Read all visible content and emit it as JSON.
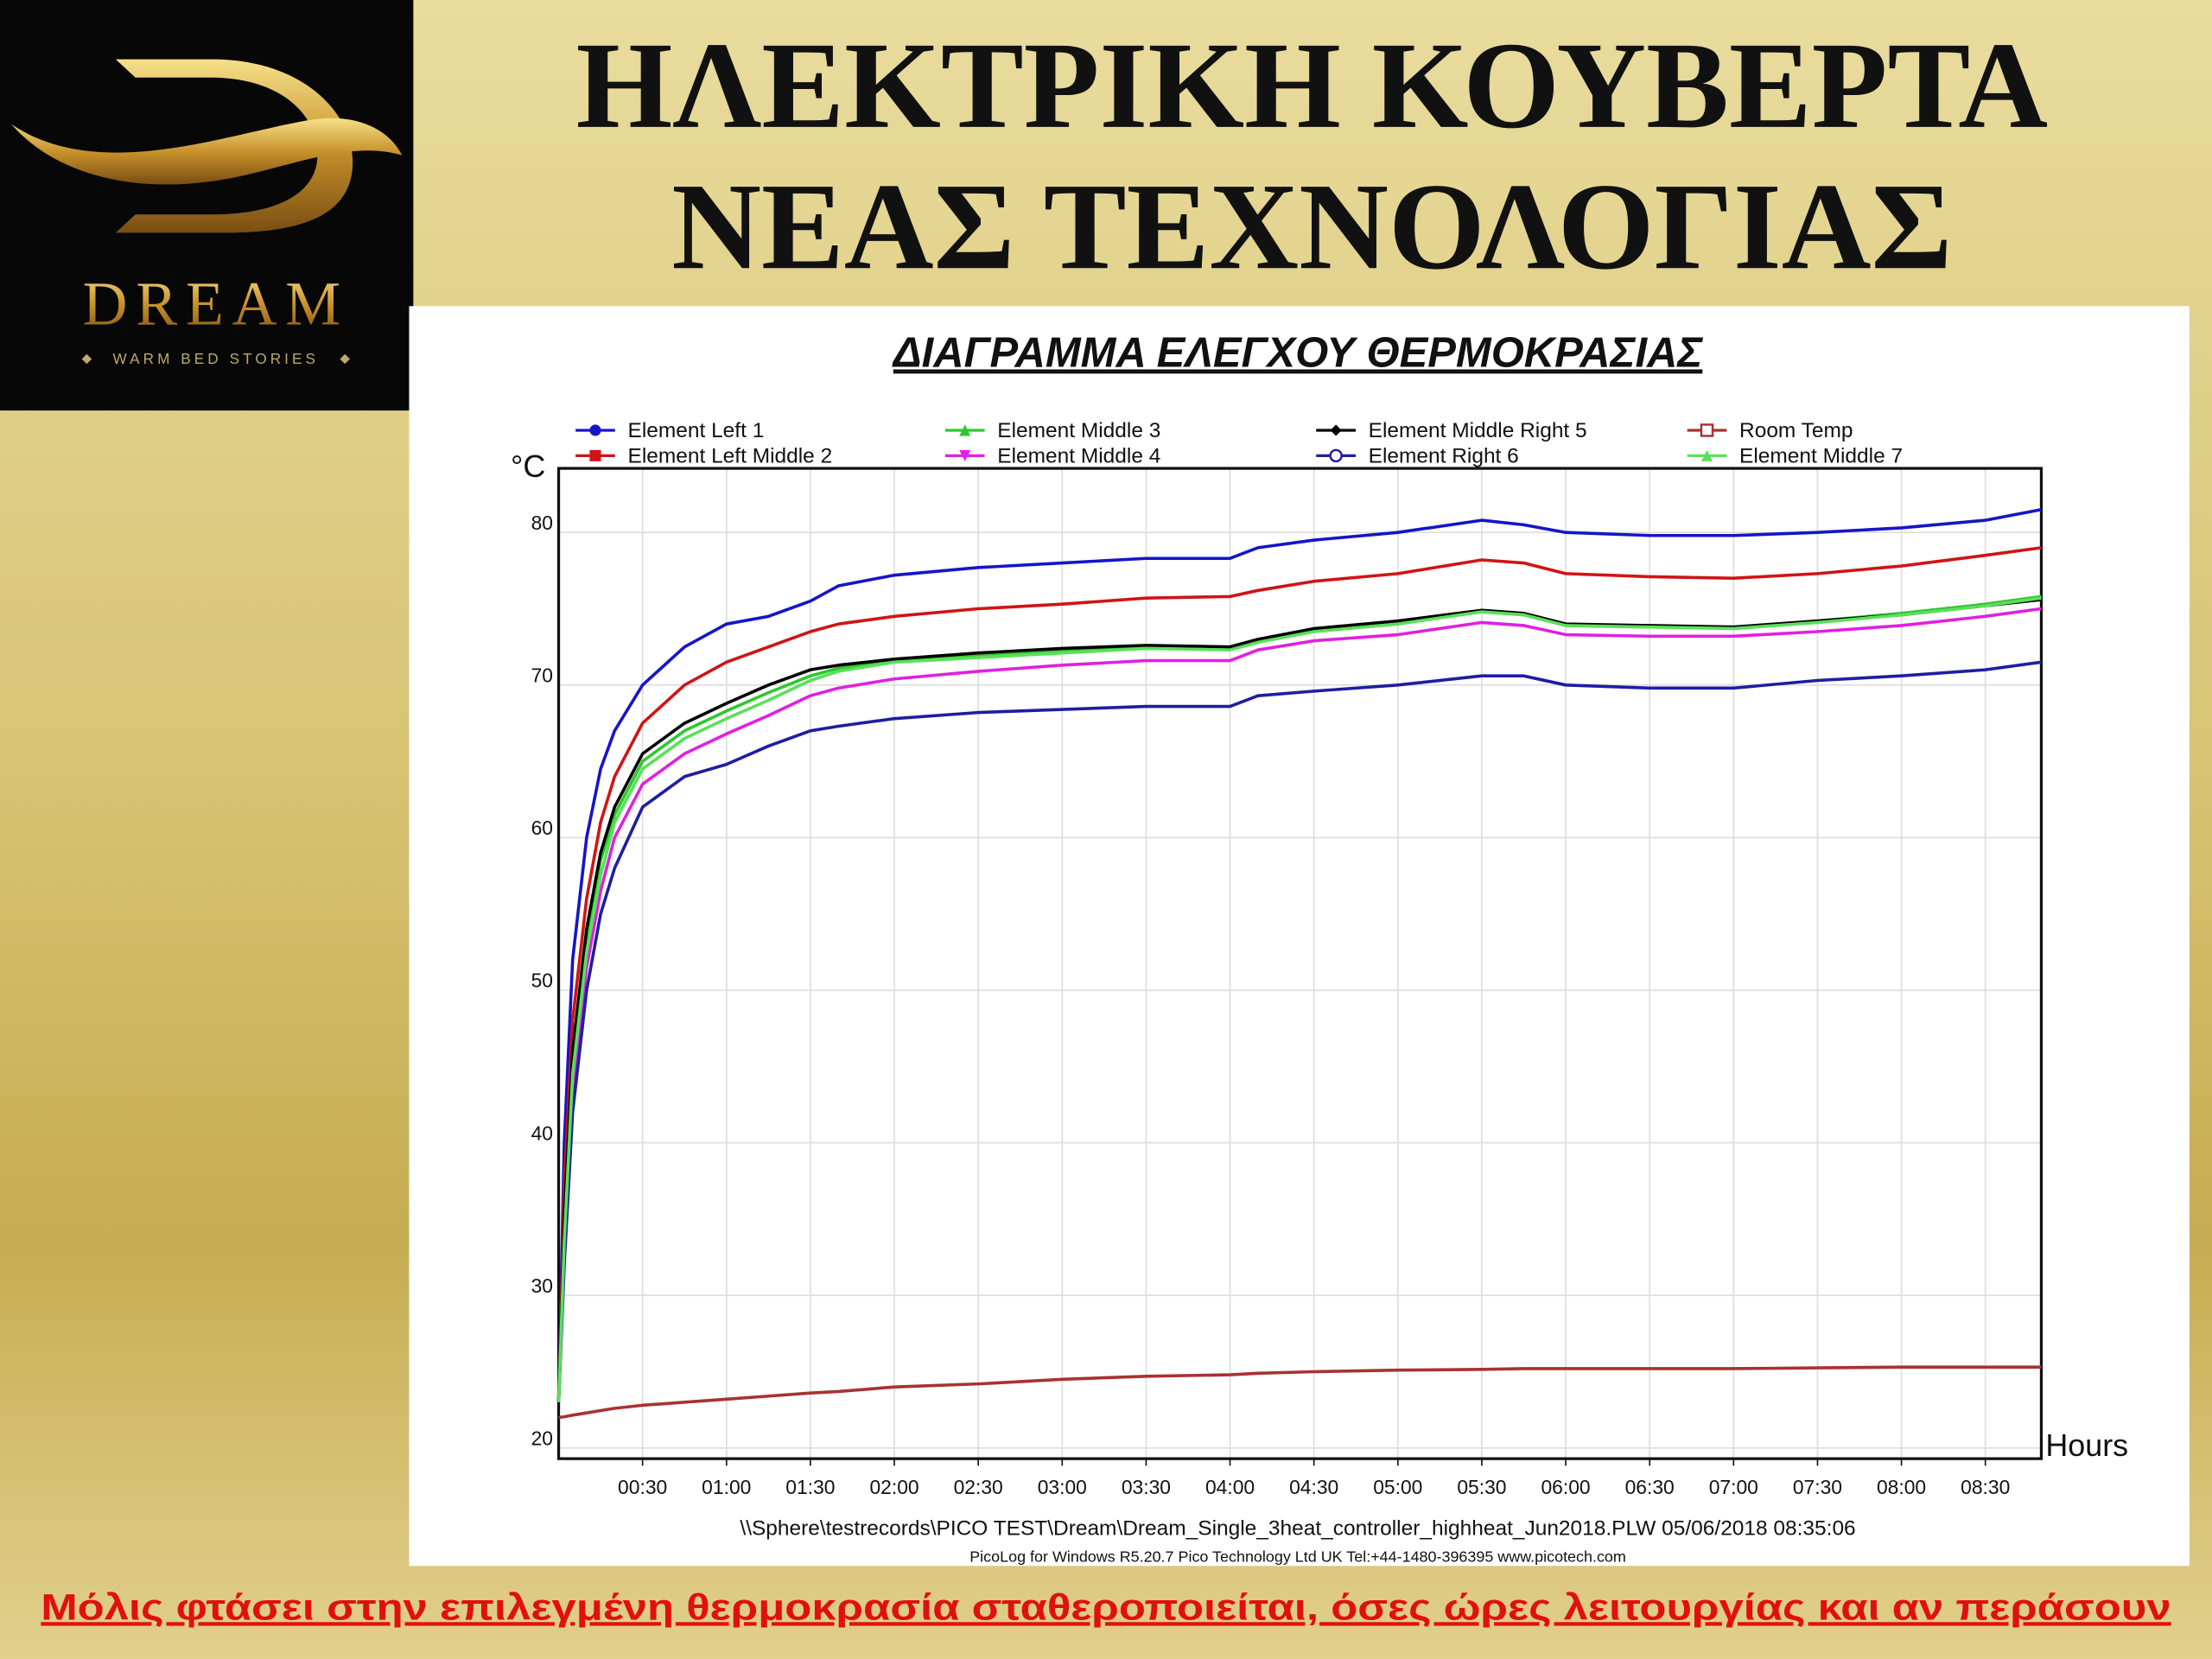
{
  "slide": {
    "title_lines": [
      "ΗΛΕΚΤΡΙΚΗ  ΚΟΥΒΕΡΤΑ",
      "ΝΕΑΣ  ΤΕΧΝΟΛΟΓΙΑΣ"
    ],
    "logo_name": "DREAM",
    "logo_tagline": "WARM BED STORIES",
    "caption": "Μόλις φτάσει στην επιλεγμένη θερμοκρασία σταθεροποιείται, όσες ώρες λειτουργίας και αν περάσουν"
  },
  "chart_data": {
    "type": "line",
    "title": "ΔΙΑΓΡΑΜΜΑ  ΕΛΕΓΧΟΥ  ΘΕΡΜΟΚΡΑΣΙΑΣ",
    "y_label": "°C",
    "x_label": "Hours",
    "footer": [
      "\\\\Sphere\\testrecords\\PICO TEST\\Dream\\Dream_Single_3heat_controller_highheat_Jun2018.PLW  05/06/2018  08:35:06",
      "PicoLog for Windows R5.20.7  Pico Technology Ltd UK  Tel:+44-1480-396395  www.picotech.com"
    ],
    "grid": true,
    "x": [
      0,
      2,
      5,
      10,
      15,
      20,
      30,
      45,
      60,
      75,
      90,
      100,
      120,
      150,
      180,
      210,
      240,
      250,
      270,
      300,
      330,
      345,
      360,
      390,
      420,
      450,
      480,
      510,
      530
    ],
    "xlim": [
      0,
      530
    ],
    "xticks": [
      {
        "value": 30,
        "label": "00:30"
      },
      {
        "value": 60,
        "label": "01:00"
      },
      {
        "value": 90,
        "label": "01:30"
      },
      {
        "value": 120,
        "label": "02:00"
      },
      {
        "value": 150,
        "label": "02:30"
      },
      {
        "value": 180,
        "label": "03:00"
      },
      {
        "value": 210,
        "label": "03:30"
      },
      {
        "value": 240,
        "label": "04:00"
      },
      {
        "value": 270,
        "label": "04:30"
      },
      {
        "value": 300,
        "label": "05:00"
      },
      {
        "value": 330,
        "label": "05:30"
      },
      {
        "value": 360,
        "label": "06:00"
      },
      {
        "value": 390,
        "label": "06:30"
      },
      {
        "value": 420,
        "label": "07:00"
      },
      {
        "value": 450,
        "label": "07:30"
      },
      {
        "value": 480,
        "label": "08:00"
      },
      {
        "value": 510,
        "label": "08:30"
      }
    ],
    "ylim": [
      19.3,
      84.2
    ],
    "yticks": [
      20,
      30,
      40,
      50,
      60,
      70,
      80
    ],
    "series": [
      {
        "name": "Element Left 1",
        "color": "#1515c8",
        "marker": "circle",
        "values": [
          23,
          40,
          52,
          60,
          64.5,
          67,
          70,
          72.5,
          74,
          74.5,
          75.5,
          76.5,
          77.2,
          77.7,
          78,
          78.3,
          78.3,
          79,
          79.5,
          80,
          80.8,
          80.5,
          80,
          79.8,
          79.8,
          80,
          80.3,
          80.8,
          81.5
        ]
      },
      {
        "name": "Element Left Middle 2",
        "color": "#d01414",
        "marker": "square",
        "values": [
          23,
          37,
          48,
          56,
          61,
          64,
          67.5,
          70,
          71.5,
          72.5,
          73.5,
          74,
          74.5,
          75,
          75.3,
          75.7,
          75.8,
          76.2,
          76.8,
          77.3,
          78.2,
          78,
          77.3,
          77.1,
          77,
          77.3,
          77.8,
          78.5,
          79
        ]
      },
      {
        "name": "Element Middle 3",
        "color": "#2ec82e",
        "marker": "triangle",
        "values": [
          23,
          34.5,
          45.5,
          53.5,
          58.5,
          61.5,
          65,
          67,
          68.3,
          69.5,
          70.6,
          71.1,
          71.6,
          71.9,
          72.2,
          72.4,
          72.4,
          72.9,
          73.6,
          74.1,
          74.8,
          74.6,
          73.9,
          73.8,
          73.8,
          74.2,
          74.7,
          75.3,
          75.8
        ]
      },
      {
        "name": "Element Middle 4",
        "color": "#e020e0",
        "marker": "triangle-down",
        "values": [
          23,
          33,
          43.5,
          51.5,
          56.5,
          60,
          63.5,
          65.5,
          66.8,
          68,
          69.3,
          69.8,
          70.4,
          70.9,
          71.3,
          71.6,
          71.6,
          72.3,
          72.9,
          73.3,
          74.1,
          73.9,
          73.3,
          73.2,
          73.2,
          73.5,
          73.9,
          74.5,
          75
        ]
      },
      {
        "name": "Element Middle Right 5",
        "color": "#000000",
        "marker": "diamond",
        "values": [
          23,
          35,
          46,
          54,
          59,
          62,
          65.5,
          67.5,
          68.8,
          70,
          71,
          71.3,
          71.7,
          72.1,
          72.4,
          72.6,
          72.5,
          73,
          73.7,
          74.2,
          74.9,
          74.7,
          74,
          73.9,
          73.8,
          74.2,
          74.6,
          75.2,
          75.6
        ]
      },
      {
        "name": "Element Right 6",
        "color": "#1e1ea0",
        "marker": "circle-open",
        "values": [
          23,
          32,
          42,
          50,
          55,
          58,
          62,
          64,
          64.8,
          66,
          67,
          67.3,
          67.8,
          68.2,
          68.4,
          68.6,
          68.6,
          69.3,
          69.6,
          70,
          70.6,
          70.6,
          70,
          69.8,
          69.8,
          70.3,
          70.6,
          71,
          71.5
        ]
      },
      {
        "name": "Room Temp",
        "color": "#a83232",
        "marker": "square-open",
        "values": [
          22,
          22.05,
          22.15,
          22.3,
          22.45,
          22.6,
          22.8,
          23,
          23.2,
          23.4,
          23.6,
          23.7,
          24,
          24.2,
          24.5,
          24.7,
          24.8,
          24.9,
          25,
          25.1,
          25.15,
          25.2,
          25.2,
          25.2,
          25.2,
          25.25,
          25.3,
          25.3,
          25.3
        ]
      },
      {
        "name": "Element Middle 7",
        "color": "#5ae05a",
        "marker": "triangle",
        "values": [
          23,
          33.5,
          44.5,
          52.5,
          57.5,
          61,
          64.5,
          66.5,
          67.8,
          69,
          70.3,
          70.9,
          71.5,
          71.8,
          72.1,
          72.4,
          72.3,
          72.8,
          73.5,
          74,
          74.8,
          74.6,
          73.9,
          73.8,
          73.7,
          74.1,
          74.6,
          75.2,
          75.7
        ]
      }
    ]
  }
}
